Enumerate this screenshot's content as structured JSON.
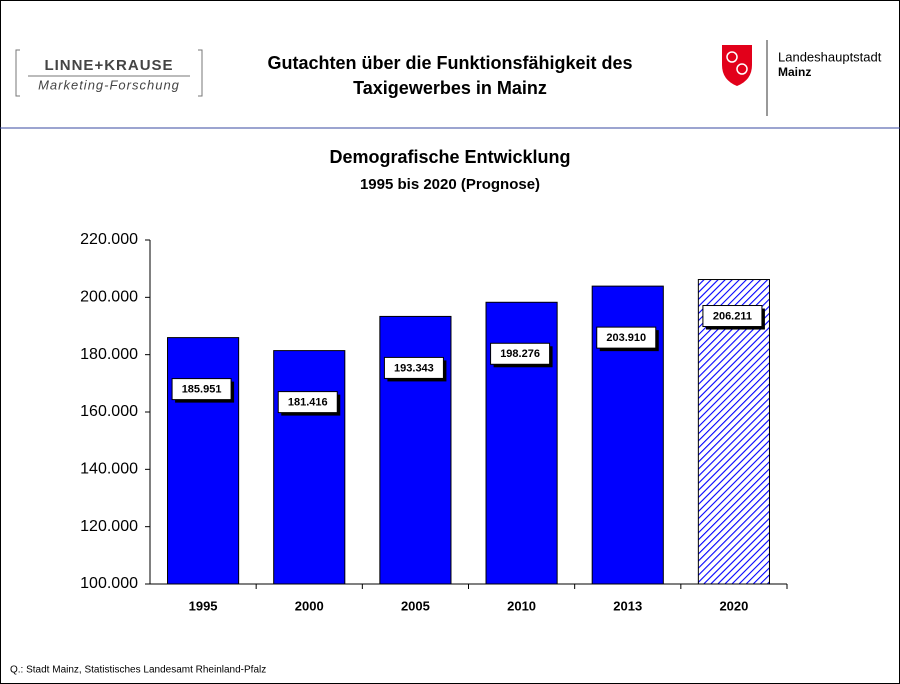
{
  "header": {
    "logo_name": "LINNE+KRAUSE",
    "logo_sub": "Marketing-Forschung",
    "title_line1": "Gutachten über die Funktionsfähigkeit des",
    "title_line2": "Taxigewerbes in Mainz",
    "city_line1": "Landeshauptstadt",
    "city_line2": "Mainz"
  },
  "chart_data": {
    "type": "bar",
    "title": "Demografische Entwicklung",
    "subtitle": "1995 bis 2020 (Prognose)",
    "categories": [
      "1995",
      "2000",
      "2005",
      "2010",
      "2013",
      "2020"
    ],
    "values": [
      185951,
      181416,
      193343,
      198276,
      203910,
      206211
    ],
    "value_labels": [
      "185.951",
      "181.416",
      "193.343",
      "198.276",
      "203.910",
      "206.211"
    ],
    "color": "#0000ff",
    "ylim": [
      100000,
      220000
    ],
    "yticks": [
      {
        "value": 100000,
        "label": "100.000"
      },
      {
        "value": 120000,
        "label": "120.000"
      },
      {
        "value": 140000,
        "label": "140.000"
      },
      {
        "value": 160000,
        "label": "160.000"
      },
      {
        "value": 180000,
        "label": "180.000"
      },
      {
        "value": 200000,
        "label": "200.000"
      },
      {
        "value": 220000,
        "label": "220.000"
      }
    ],
    "grid": false
  },
  "footer": {
    "source": "Q.: Stadt Mainz, Statistisches Landesamt Rheinland-Pfalz"
  }
}
